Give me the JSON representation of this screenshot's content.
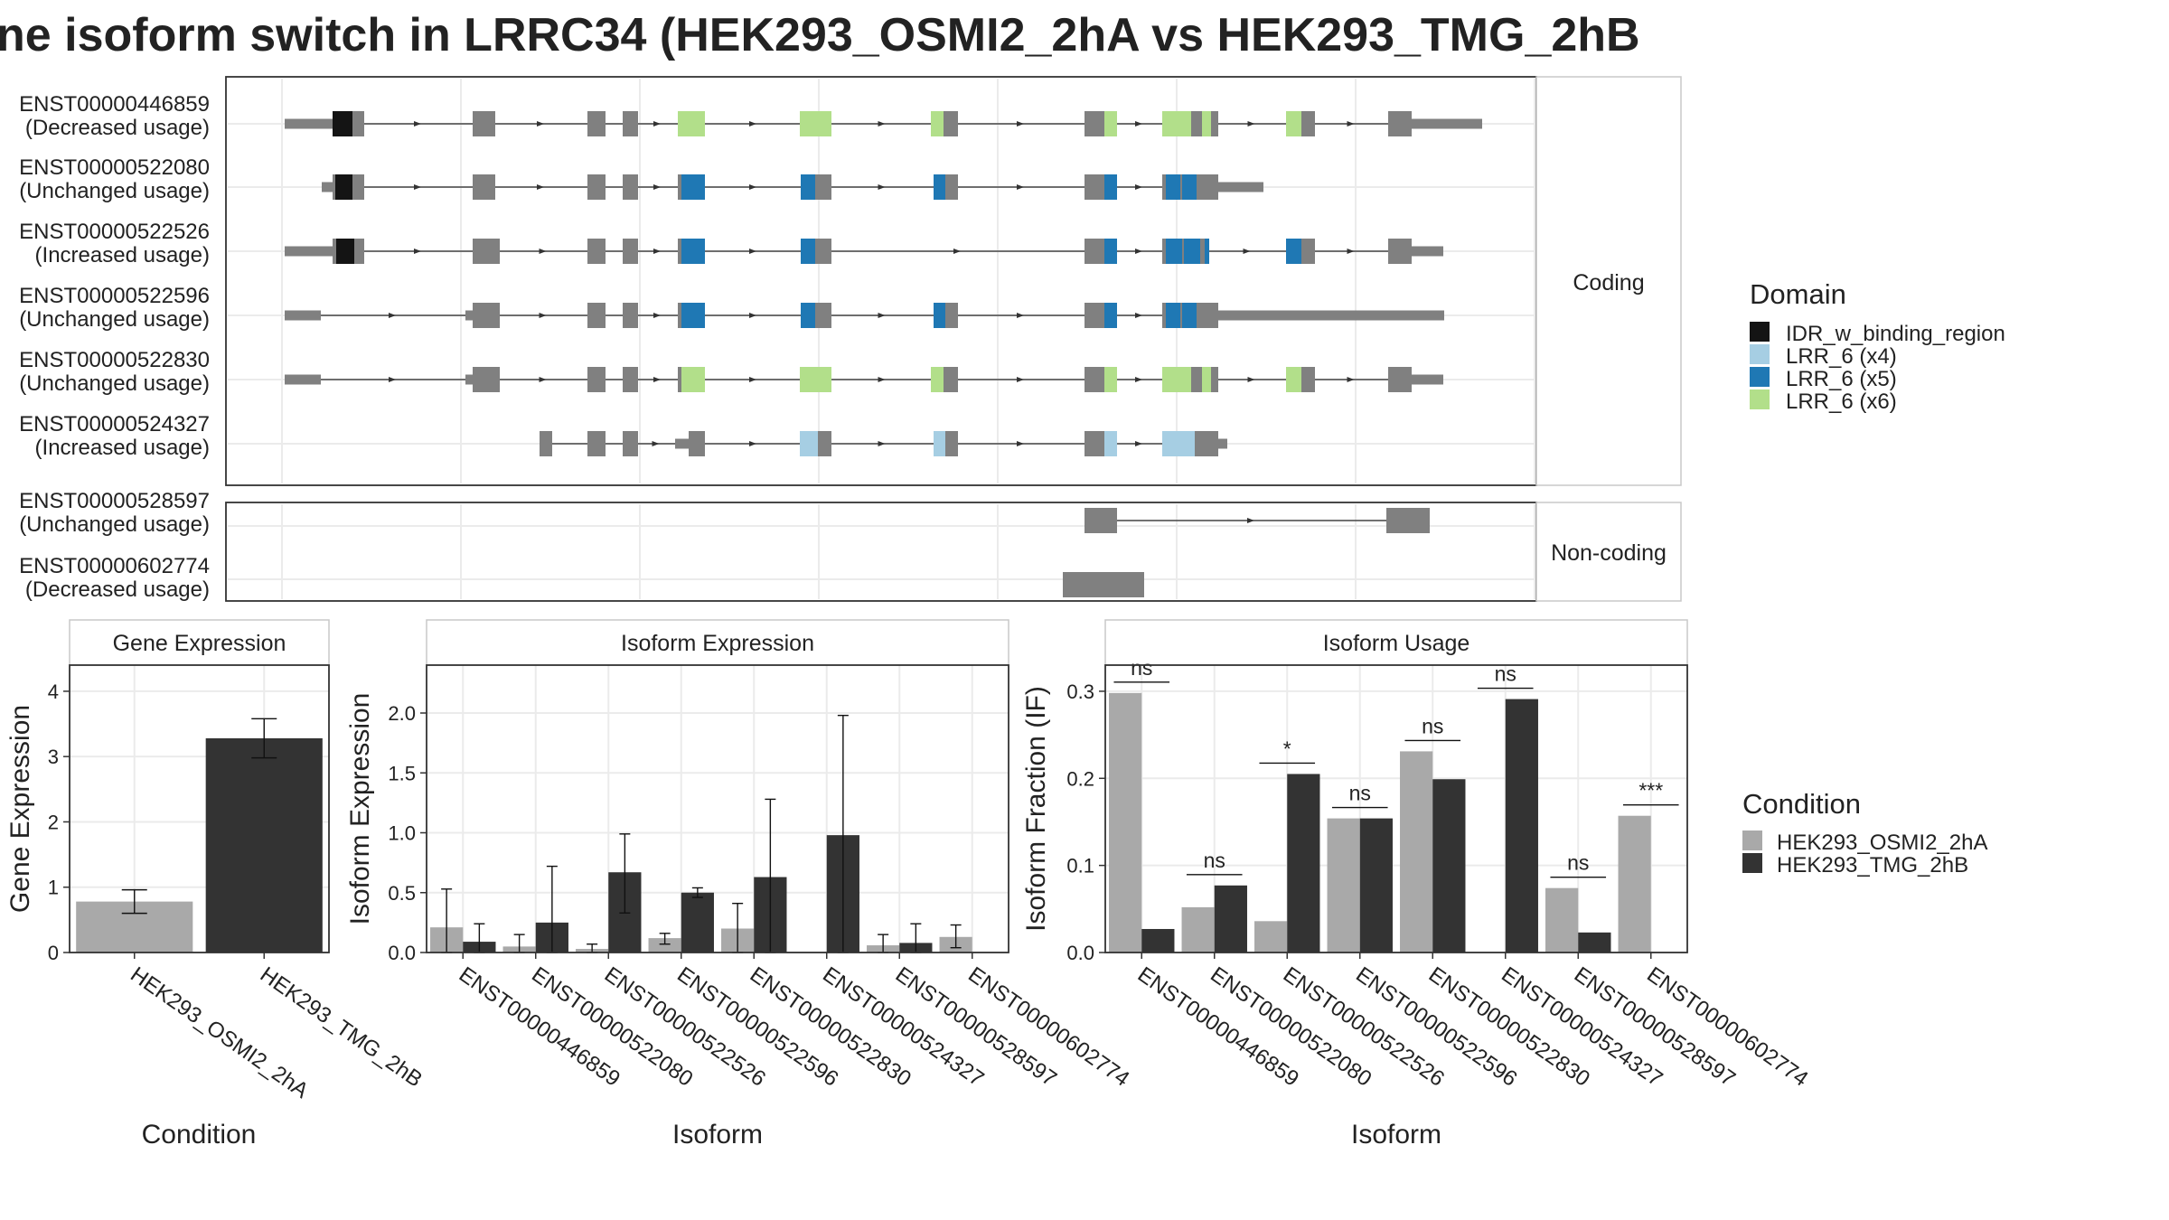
{
  "title": "ne isoform switch in LRRC34 (HEK293_OSMI2_2hA vs HEK293_TMG_2hB",
  "colors": {
    "IDR_w_binding_region": "#141414",
    "LRR_6 (x4)": "#a6cee3",
    "LRR_6 (x5)": "#1f78b4",
    "LRR_6 (x6)": "#b2df8a",
    "exon": "#808080",
    "cond1": "#a9a9a9",
    "cond2": "#333333",
    "panel_border": "#333333",
    "grid": "#ebebeb",
    "strip_border": "#c8c8c8"
  },
  "chart_data": [
    {
      "type": "gene_structure",
      "groups": [
        {
          "label": "Coding",
          "tracks": [
            {
              "name": "ENST00000446859",
              "usage": "(Decreased usage)"
            },
            {
              "name": "ENST00000522080",
              "usage": "(Unchanged usage)"
            },
            {
              "name": "ENST00000522526",
              "usage": "(Increased usage)"
            },
            {
              "name": "ENST00000522596",
              "usage": "(Unchanged usage)"
            },
            {
              "name": "ENST00000522830",
              "usage": "(Unchanged usage)"
            },
            {
              "name": "ENST00000524327",
              "usage": "(Increased usage)"
            }
          ]
        },
        {
          "label": "Non-coding",
          "tracks": [
            {
              "name": "ENST00000528597",
              "usage": "(Unchanged usage)"
            },
            {
              "name": "ENST00000602774",
              "usage": "(Decreased usage)"
            }
          ]
        }
      ],
      "legend": {
        "title": "Domain",
        "entries": [
          "IDR_w_binding_region",
          "LRR_6 (x4)",
          "LRR_6 (x5)",
          "LRR_6 (x6)"
        ]
      }
    },
    {
      "type": "bar",
      "strip": "Gene Expression",
      "xlabel": "Condition",
      "ylabel": "Gene Expression",
      "ylim": [
        0,
        4.4
      ],
      "yticks": [
        "0",
        "1",
        "2",
        "3",
        "4"
      ],
      "categories": [
        "HEK293_OSMI2_2hA",
        "HEK293_TMG_2hB"
      ],
      "values": [
        0.78,
        3.28
      ],
      "err_lo": [
        0.6,
        2.98
      ],
      "err_hi": [
        0.96,
        3.58
      ]
    },
    {
      "type": "bar",
      "strip": "Isoform Expression",
      "xlabel": "Isoform",
      "ylabel": "Isoform Expression",
      "ylim": [
        0,
        2.4
      ],
      "yticks": [
        "0.0",
        "0.5",
        "1.0",
        "1.5",
        "2.0"
      ],
      "categories": [
        "ENST00000446859",
        "ENST00000522080",
        "ENST00000522526",
        "ENST00000522596",
        "ENST00000522830",
        "ENST00000524327",
        "ENST00000528597",
        "ENST00000602774"
      ],
      "series": [
        {
          "name": "HEK293_OSMI2_2hA",
          "values": [
            0.21,
            0.05,
            0.03,
            0.12,
            0.2,
            0.0,
            0.06,
            0.13
          ],
          "err_lo": [
            0.0,
            0.0,
            0.0,
            0.07,
            0.0,
            0.0,
            0.0,
            0.04
          ],
          "err_hi": [
            0.53,
            0.15,
            0.07,
            0.16,
            0.41,
            0.0,
            0.15,
            0.23
          ]
        },
        {
          "name": "HEK293_TMG_2hB",
          "values": [
            0.09,
            0.25,
            0.67,
            0.5,
            0.63,
            0.98,
            0.08,
            0.0
          ],
          "err_lo": [
            0.0,
            0.0,
            0.33,
            0.46,
            0.0,
            0.0,
            0.0,
            0.0
          ],
          "err_hi": [
            0.24,
            0.72,
            0.99,
            0.54,
            1.28,
            1.98,
            0.24,
            0.0
          ]
        }
      ]
    },
    {
      "type": "bar",
      "strip": "Isoform Usage",
      "xlabel": "Isoform",
      "ylabel": "Isoform Fraction (IF)",
      "ylim": [
        0,
        0.33
      ],
      "yticks": [
        "0.0",
        "0.1",
        "0.2",
        "0.3"
      ],
      "categories": [
        "ENST00000446859",
        "ENST00000522080",
        "ENST00000522526",
        "ENST00000522596",
        "ENST00000522830",
        "ENST00000524327",
        "ENST00000528597",
        "ENST00000602774"
      ],
      "series": [
        {
          "name": "HEK293_OSMI2_2hA",
          "values": [
            0.298,
            0.052,
            0.036,
            0.154,
            0.231,
            0.0,
            0.074,
            0.157
          ]
        },
        {
          "name": "HEK293_TMG_2hB",
          "values": [
            0.027,
            0.077,
            0.205,
            0.154,
            0.199,
            0.291,
            0.023,
            0.0
          ]
        }
      ],
      "significance": [
        "ns",
        "ns",
        "*",
        "ns",
        "ns",
        "ns",
        "ns",
        "***"
      ]
    }
  ],
  "condition_legend": {
    "title": "Condition",
    "entries": [
      "HEK293_OSMI2_2hA",
      "HEK293_TMG_2hB"
    ]
  }
}
